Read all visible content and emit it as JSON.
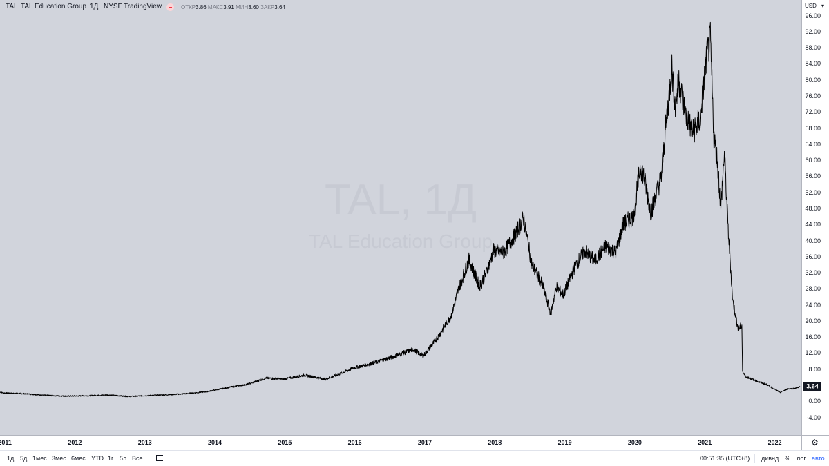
{
  "header": {
    "symbol": "TAL",
    "name": "TAL Education Group",
    "interval": "1Д",
    "exchange": "NYSE",
    "source": "TradingView",
    "ohlc": {
      "open_label": "ОТКР",
      "open": "3.86",
      "high_label": "МАКС",
      "high": "3.91",
      "low_label": "МИН",
      "low": "3.60",
      "close_label": "ЗАКР",
      "close": "3.64"
    }
  },
  "watermark": {
    "line1": "TAL, 1Д",
    "line2": "TAL Education Group"
  },
  "price_axis": {
    "currency": "USD",
    "ticks": [
      "96.00",
      "92.00",
      "88.00",
      "84.00",
      "80.00",
      "76.00",
      "72.00",
      "68.00",
      "64.00",
      "60.00",
      "56.00",
      "52.00",
      "48.00",
      "44.00",
      "40.00",
      "36.00",
      "32.00",
      "28.00",
      "24.00",
      "20.00",
      "16.00",
      "12.00",
      "8.00",
      "0.00",
      "-4.00"
    ],
    "last_price": "3.64"
  },
  "time_axis": {
    "years": [
      "2011",
      "2012",
      "2013",
      "2014",
      "2015",
      "2016",
      "2017",
      "2018",
      "2019",
      "2020",
      "2021",
      "2022"
    ]
  },
  "bottom_bar": {
    "ranges": [
      "1д",
      "5д",
      "1мес",
      "3мес",
      "6мес",
      "YTD",
      "1г",
      "5л",
      "Все"
    ],
    "clock": "00:51:35 (UTC+8)",
    "divid": "дивнд",
    "percent": "%",
    "log": "лог",
    "auto": "авто"
  },
  "colors": {
    "background": "#d1d4dc",
    "line": "#000000",
    "accent": "#2962ff",
    "dot": "#f23645"
  },
  "chart_data": {
    "type": "line",
    "x_unit": "year",
    "y_unit": "USD",
    "ylim": [
      -7,
      98
    ],
    "xlim": [
      2010.95,
      2022.4
    ],
    "grid": false,
    "series": [
      {
        "x": [
          2010.95,
          2011.0,
          2011.3,
          2011.6,
          2011.9,
          2012.2,
          2012.5,
          2012.8,
          2013.0,
          2013.3,
          2013.6,
          2013.9,
          2014.2,
          2014.5,
          2014.75,
          2015.0,
          2015.3,
          2015.6,
          2015.8,
          2016.0,
          2016.3,
          2016.6,
          2016.85,
          2017.0,
          2017.2,
          2017.4,
          2017.5,
          2017.65,
          2017.8,
          2017.9,
          2018.0,
          2018.15,
          2018.3,
          2018.43,
          2018.55,
          2018.7,
          2018.82,
          2018.9,
          2019.0,
          2019.15,
          2019.3,
          2019.45,
          2019.6,
          2019.75,
          2019.85,
          2020.0,
          2020.1,
          2020.15,
          2020.25,
          2020.3,
          2020.4,
          2020.45,
          2020.55,
          2020.6,
          2020.65,
          2020.75,
          2020.85,
          2020.95,
          2021.0,
          2021.05,
          2021.1,
          2021.15,
          2021.2,
          2021.25,
          2021.3,
          2021.35,
          2021.42,
          2021.5,
          2021.55,
          2021.56,
          2021.6,
          2021.7,
          2021.8,
          2021.9,
          2022.0,
          2022.1,
          2022.2,
          2022.3,
          2022.38
        ],
        "y": [
          2.3,
          2.1,
          1.9,
          1.5,
          1.3,
          1.4,
          1.6,
          1.2,
          1.4,
          1.6,
          1.9,
          2.4,
          3.4,
          4.3,
          5.8,
          5.5,
          6.5,
          5.5,
          6.8,
          8.3,
          9.6,
          11.3,
          12.9,
          11.3,
          15.8,
          21.4,
          27.8,
          35.2,
          28.7,
          32.0,
          37.5,
          37.0,
          41.2,
          45.6,
          34.0,
          29.0,
          21.8,
          28.5,
          26.5,
          33.0,
          37.5,
          35.0,
          38.5,
          37.0,
          44.0,
          46.0,
          58.5,
          56.0,
          47.0,
          50.0,
          56.0,
          66.0,
          83.0,
          73.0,
          80.0,
          71.0,
          67.0,
          70.0,
          78.0,
          86.0,
          90.0,
          66.0,
          60.0,
          48.0,
          62.0,
          44.0,
          25.0,
          17.9,
          19.0,
          7.5,
          6.2,
          5.5,
          4.8,
          4.2,
          3.2,
          2.2,
          3.1,
          3.2,
          3.64
        ]
      }
    ]
  }
}
